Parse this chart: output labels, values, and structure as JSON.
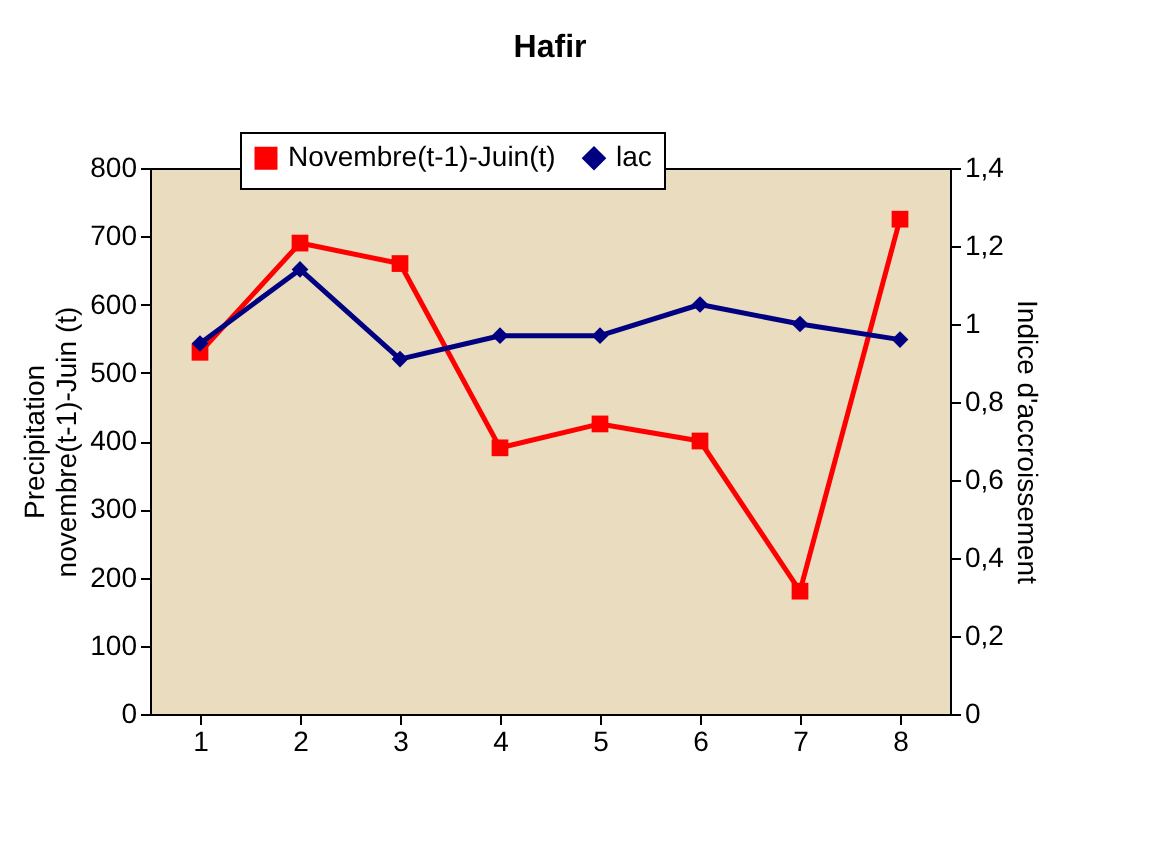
{
  "chart_data": {
    "type": "line",
    "title": "Hafir",
    "categories": [
      "1",
      "2",
      "3",
      "4",
      "5",
      "6",
      "7",
      "8"
    ],
    "series": [
      {
        "name": "Novembre(t-1)-Juin(t)",
        "color": "#ff0000",
        "marker": "square",
        "values": [
          530,
          690,
          660,
          390,
          425,
          400,
          180,
          725
        ]
      },
      {
        "name": "lac",
        "color": "#000080",
        "marker": "diamond",
        "axis": "y2",
        "values": [
          0.95,
          1.14,
          0.91,
          0.97,
          0.97,
          1.05,
          1.0,
          0.96
        ]
      }
    ],
    "ylabel": "Precipitation novembre(t-1)-Juin (t)",
    "y2label": "Indice d'accroissement",
    "ylim": [
      0,
      800
    ],
    "yticks": [
      0,
      100,
      200,
      300,
      400,
      500,
      600,
      700,
      800
    ],
    "y2lim": [
      0,
      1.4
    ],
    "y2ticks": [
      0,
      {
        "value": 0.2,
        "label": "0,2"
      },
      {
        "value": 0.4,
        "label": "0,4"
      },
      {
        "value": 0.6,
        "label": "0,6"
      },
      {
        "value": 0.8,
        "label": "0,8"
      },
      1,
      {
        "value": 1.2,
        "label": "1,2"
      },
      {
        "value": 1.4,
        "label": "1,4"
      }
    ],
    "legend": "top",
    "grid": false,
    "line_style": "solid"
  }
}
